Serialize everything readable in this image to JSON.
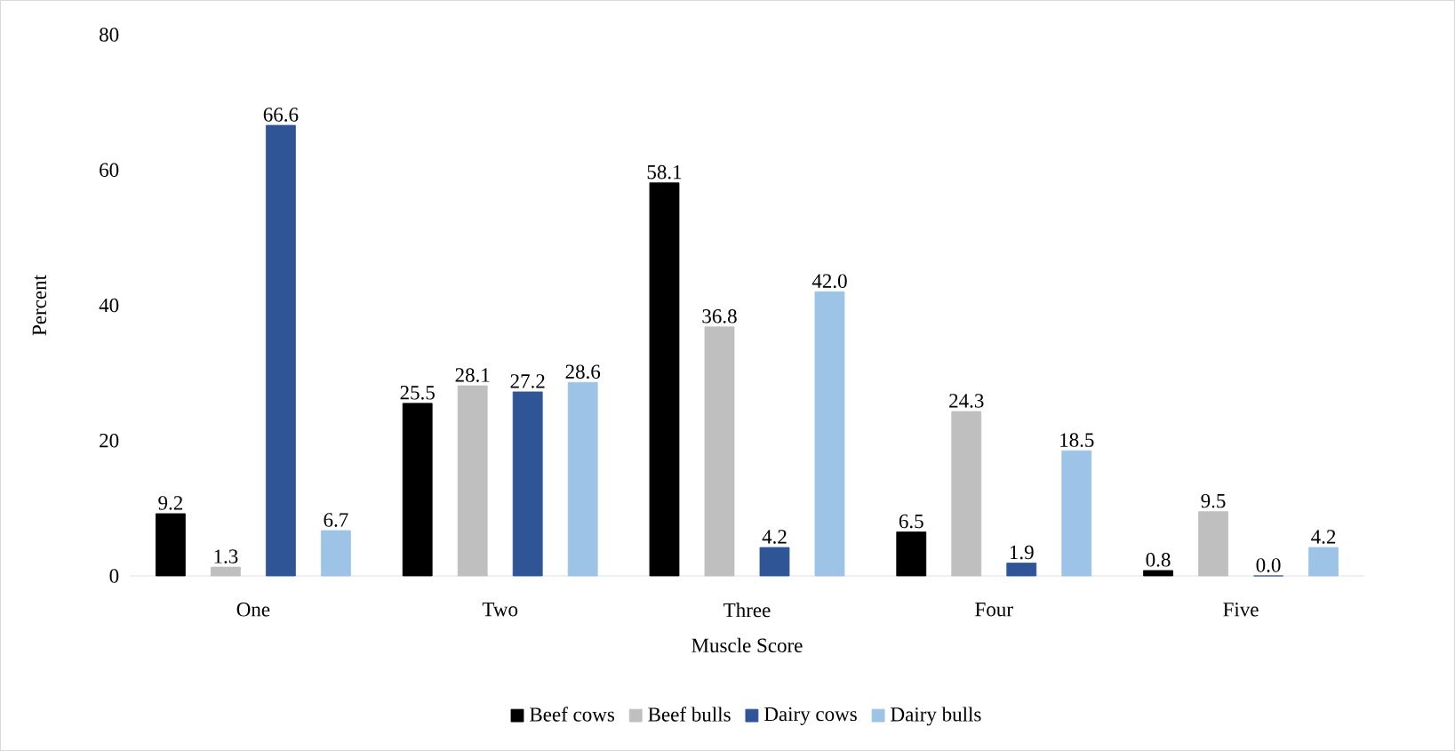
{
  "chart_data": {
    "type": "bar",
    "xlabel": "Muscle Score",
    "ylabel": "Percent",
    "categories": [
      "One",
      "Two",
      "Three",
      "Four",
      "Five"
    ],
    "series": [
      {
        "name": "Beef cows",
        "color": "#000000",
        "values": [
          9.2,
          25.5,
          58.1,
          6.5,
          0.8
        ],
        "value_labels": [
          "9.2",
          "25.5",
          "58.1",
          "6.5",
          "0.8"
        ]
      },
      {
        "name": "Beef bulls",
        "color": "#bfbfbf",
        "values": [
          1.3,
          28.1,
          36.8,
          24.3,
          9.5
        ],
        "value_labels": [
          "1.3",
          "28.1",
          "36.8",
          "24.3",
          "9.5"
        ]
      },
      {
        "name": "Dairy cows",
        "color": "#2f5597",
        "values": [
          66.6,
          27.2,
          4.2,
          1.9,
          0.0
        ],
        "value_labels": [
          "66.6",
          "27.2",
          "4.2",
          "1.9",
          "0.0"
        ]
      },
      {
        "name": "Dairy bulls",
        "color": "#9dc3e6",
        "values": [
          6.7,
          28.6,
          42.0,
          18.5,
          4.2
        ],
        "value_labels": [
          "6.7",
          "28.6",
          "42.0",
          "18.5",
          "4.2"
        ]
      }
    ],
    "ylim": [
      0,
      80
    ],
    "yticks": [
      0,
      20,
      40,
      60,
      80
    ],
    "grid": false,
    "legend": "bottom"
  }
}
